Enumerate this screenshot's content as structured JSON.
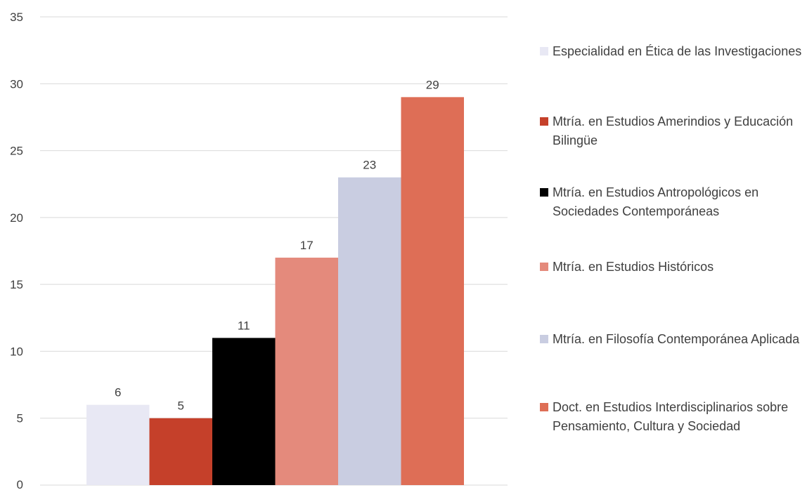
{
  "chart_data": {
    "type": "bar",
    "categories": [
      "Especialidad en Ética de las Investigaciones",
      "Mtría. en Estudios Amerindios y Educación Bilingüe",
      "Mtría. en Estudios Antropológicos en Sociedades Contemporáneas",
      "Mtría. en Estudios Históricos",
      "Mtría. en Filosofía Contemporánea Aplicada",
      "Doct. en Estudios Interdisciplinarios sobre Pensamiento, Cultura y Sociedad"
    ],
    "values": [
      6,
      5,
      11,
      17,
      23,
      29
    ],
    "data_labels": [
      "6",
      "5",
      "11",
      "17",
      "23",
      "29"
    ],
    "colors": [
      "#e8e8f4",
      "#c5402a",
      "#000000",
      "#e48a7c",
      "#c9cde1",
      "#de6e56"
    ],
    "ylim": [
      0,
      35
    ],
    "yticks": [
      "0",
      "5",
      "10",
      "15",
      "20",
      "25",
      "30",
      "35"
    ],
    "grid": true,
    "legend_position": "right",
    "gridline_color": "#d9d9d9"
  },
  "legend": {
    "items": [
      {
        "label": "Especialidad en Ética de las Investigaciones",
        "color": "#e8e8f4"
      },
      {
        "label": "Mtría. en Estudios Amerindios y Educación Bilingüe",
        "color": "#c5402a"
      },
      {
        "label": "Mtría. en Estudios Antropológicos en Sociedades Contemporáneas",
        "color": "#000000"
      },
      {
        "label": "Mtría. en Estudios Históricos",
        "color": "#e48a7c"
      },
      {
        "label": "Mtría. en Filosofía Contemporánea Aplicada",
        "color": "#c9cde1"
      },
      {
        "label": "Doct. en Estudios Interdisciplinarios sobre Pensamiento, Cultura y Sociedad",
        "color": "#de6e56"
      }
    ]
  }
}
